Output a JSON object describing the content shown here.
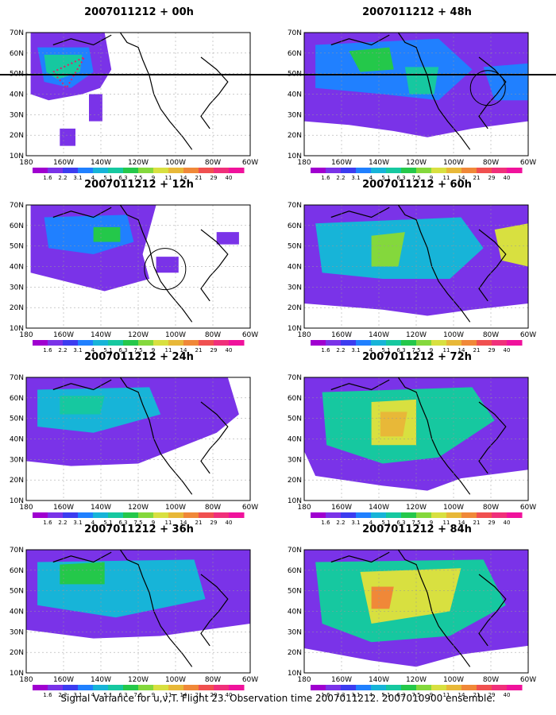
{
  "figure": {
    "caption": "Signal Variance for u,v,T. Flight 23. Observation time 2007011212. 2007010900 ensemble."
  },
  "panels": [
    {
      "title": "2007011212 + 00h"
    },
    {
      "title": "2007011212 + 48h"
    },
    {
      "title": "2007011212 + 12h"
    },
    {
      "title": "2007011212 + 60h"
    },
    {
      "title": "2007011212 + 24h"
    },
    {
      "title": "2007011212 + 72h"
    },
    {
      "title": "2007011212 + 36h"
    },
    {
      "title": "2007011212 + 84h"
    }
  ],
  "axes": {
    "lat_labels": [
      "70N",
      "60N",
      "50N",
      "40N",
      "30N",
      "20N",
      "10N"
    ],
    "lon_labels": [
      "180",
      "160W",
      "140W",
      "120W",
      "100W",
      "80W",
      "60W"
    ]
  },
  "colorbar": {
    "labels": [
      "1.6",
      "2.2",
      "3.1",
      "4",
      "5.1",
      "6.3",
      "7.5",
      "9",
      "11",
      "14",
      "21",
      "29",
      "40"
    ],
    "colors": [
      "#a000d0",
      "#7a33e8",
      "#3c3cf0",
      "#2080ff",
      "#17b4d8",
      "#16c8a0",
      "#24c84a",
      "#84d83c",
      "#d8e040",
      "#e8b838",
      "#f08838",
      "#f05050",
      "#f0307a",
      "#f0129c"
    ]
  },
  "chart_data": {
    "type": "heatmap",
    "title": "Signal Variance for u,v,T. Flight 23. Observation time 2007011212. 2007010900 ensemble.",
    "lat_range": [
      "10N",
      "70N"
    ],
    "lon_range": [
      "180",
      "60W"
    ],
    "contour_levels": [
      1.6,
      2.2,
      3.1,
      4,
      5.1,
      6.3,
      7.5,
      9,
      11,
      14,
      21,
      29,
      40
    ],
    "lead_times": [
      "00h",
      "12h",
      "24h",
      "36h",
      "48h",
      "60h",
      "72h",
      "84h"
    ],
    "peak_level_by_lead_time": [
      5.1,
      6.3,
      5.1,
      6.3,
      6.3,
      9,
      11,
      14
    ]
  }
}
